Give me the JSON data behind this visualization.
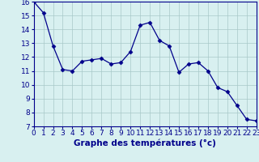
{
  "hours": [
    0,
    1,
    2,
    3,
    4,
    5,
    6,
    7,
    8,
    9,
    10,
    11,
    12,
    13,
    14,
    15,
    16,
    17,
    18,
    19,
    20,
    21,
    22,
    23
  ],
  "temps": [
    16.0,
    15.2,
    12.8,
    11.1,
    11.0,
    11.7,
    11.8,
    11.9,
    11.5,
    11.6,
    12.4,
    14.3,
    14.5,
    13.2,
    12.8,
    10.9,
    11.5,
    11.6,
    11.0,
    9.8,
    9.5,
    8.5,
    7.5,
    7.4
  ],
  "line_color": "#00008B",
  "marker": "D",
  "marker_size": 2.5,
  "bg_color": "#d8f0f0",
  "grid_color": "#a8c8c8",
  "xlabel": "Graphe des températures (°c)",
  "tick_color": "#00008B",
  "ylim": [
    7,
    16
  ],
  "xlim": [
    0,
    23
  ],
  "yticks": [
    7,
    8,
    9,
    10,
    11,
    12,
    13,
    14,
    15,
    16
  ],
  "xticks": [
    0,
    1,
    2,
    3,
    4,
    5,
    6,
    7,
    8,
    9,
    10,
    11,
    12,
    13,
    14,
    15,
    16,
    17,
    18,
    19,
    20,
    21,
    22,
    23
  ],
  "tick_fontsize": 6.5,
  "label_fontsize": 7.5
}
